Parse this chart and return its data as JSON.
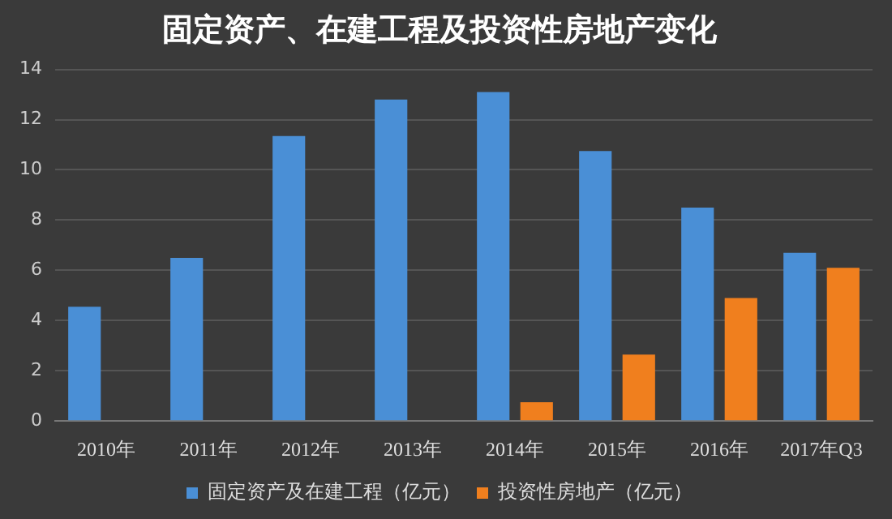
{
  "chart_data": {
    "type": "bar",
    "title": "固定资产、在建工程及投资性房地产变化",
    "categories": [
      "2010年",
      "2011年",
      "2012年",
      "2013年",
      "2014年",
      "2015年",
      "2016年",
      "2017年Q3"
    ],
    "series": [
      {
        "name": "固定资产及在建工程（亿元）",
        "color": "#4a8fd6",
        "values": [
          4.55,
          6.5,
          11.35,
          12.8,
          13.1,
          10.75,
          8.5,
          6.7
        ]
      },
      {
        "name": "投资性房地产（亿元）",
        "color": "#f07f1e",
        "values": [
          null,
          null,
          null,
          null,
          0.75,
          2.65,
          4.9,
          6.1
        ]
      }
    ],
    "ylim": [
      0,
      14
    ],
    "yticks": [
      0,
      2,
      4,
      6,
      8,
      10,
      12,
      14
    ],
    "grid": "y",
    "legend": "bottom"
  }
}
